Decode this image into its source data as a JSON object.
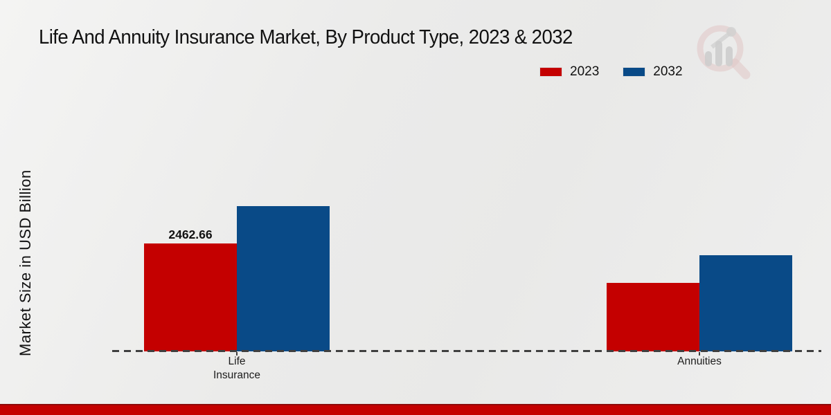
{
  "title": "Life And Annuity Insurance Market, By Product Type, 2023 & 2032",
  "ylabel": "Market Size in USD Billion",
  "footer_bar_color": "#c40000",
  "watermark_icon": "magnifier-bar-chart-logo",
  "chart_data": {
    "type": "bar",
    "title": "Life And Annuity Insurance Market, By Product Type, 2023 & 2032",
    "xlabel": "",
    "ylabel": "Market Size in USD Billion",
    "categories": [
      "Life\nInsurance",
      "Annuities"
    ],
    "series": [
      {
        "name": "2023",
        "color": "#c40000",
        "values": [
          2462.66,
          1563
        ]
      },
      {
        "name": "2032",
        "color": "#094a87",
        "values": [
          3316,
          2195
        ]
      }
    ],
    "value_labels": [
      {
        "series": "2023",
        "category": "Life Insurance",
        "text": "2462.66"
      }
    ],
    "ylim": [
      0,
      3600
    ],
    "grid": false,
    "axis_ticks_y": "none",
    "baseline_style": "dashed",
    "legend_position": "top-right",
    "note": "Only the 2023 Life Insurance bar is labeled; other values estimated from bar heights."
  }
}
